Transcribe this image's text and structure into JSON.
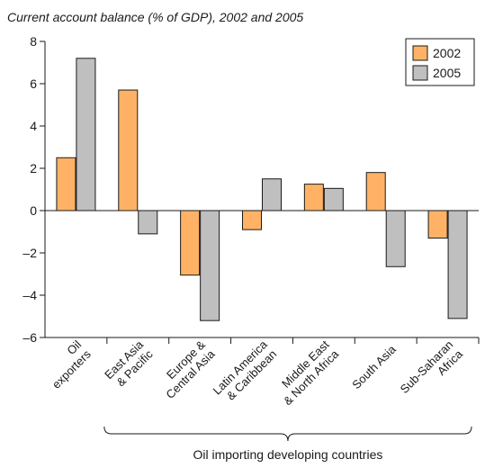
{
  "chart_data": {
    "type": "bar",
    "title": "Current account balance (% of GDP), 2002 and 2005",
    "categories": [
      [
        "Oil",
        "exporters"
      ],
      [
        "East Asia",
        "& Pacific"
      ],
      [
        "Europe &",
        "Central Asia"
      ],
      [
        "Latin America",
        "& Caribbean"
      ],
      [
        "Middle East",
        "& North Africa"
      ],
      [
        "South Asia"
      ],
      [
        "Sub-Saharan",
        "Africa"
      ]
    ],
    "series": [
      {
        "name": "2002",
        "color": "#FFB266",
        "values": [
          2.5,
          5.7,
          -3.05,
          -0.9,
          1.25,
          1.8,
          -1.3
        ]
      },
      {
        "name": "2005",
        "color": "#BFBFBF",
        "values": [
          7.2,
          -1.1,
          -5.2,
          1.5,
          1.05,
          -2.65,
          -5.1
        ]
      }
    ],
    "ylim": [
      -6,
      8
    ],
    "yticks": [
      -6,
      -4,
      -2,
      0,
      2,
      4,
      6,
      8
    ],
    "ytick_labels": [
      "–6",
      "–4",
      "–2",
      "0",
      "2",
      "4",
      "6",
      "8"
    ],
    "legend_position": "top-right",
    "grid": false,
    "group_annotation": "Oil importing developing countries"
  }
}
